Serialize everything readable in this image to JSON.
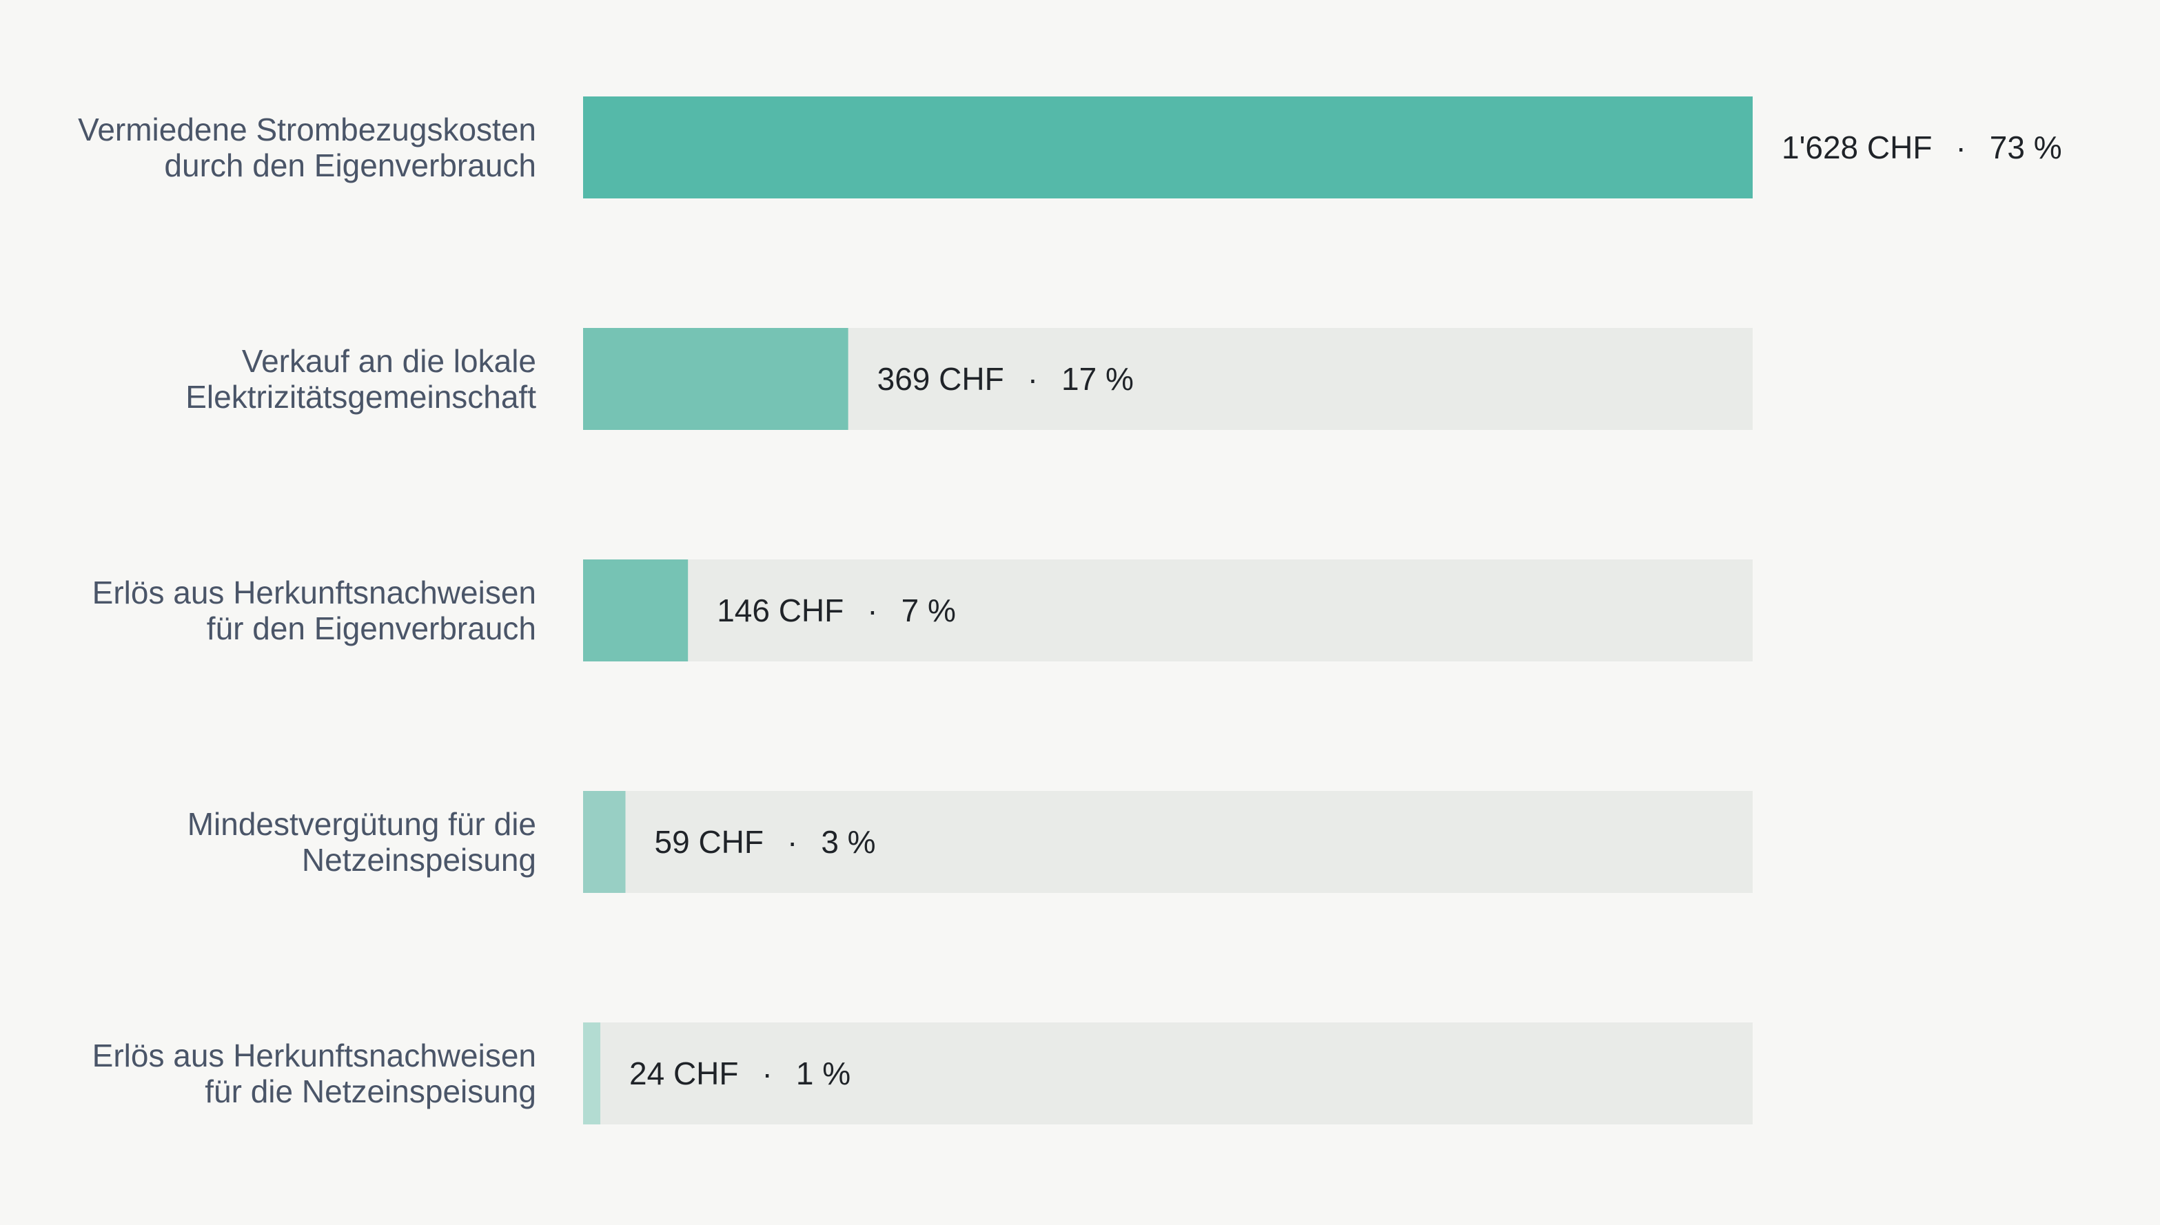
{
  "chart_data": {
    "type": "bar",
    "orientation": "horizontal",
    "unit": "CHF",
    "categories": [
      [
        "Vermiedene Strombezugskosten",
        "durch den Eigenverbrauch"
      ],
      [
        "Verkauf an die lokale",
        "Elektrizitätsgemeinschaft"
      ],
      [
        "Erlös aus Herkunftsnachweisen",
        "für den Eigenverbrauch"
      ],
      [
        "Mindestvergütung für die",
        "Netzeinspeisung"
      ],
      [
        "Erlös aus Herkunftsnachweisen",
        "für die Netzeinspeisung"
      ]
    ],
    "values": [
      1628,
      369,
      146,
      59,
      24
    ],
    "percents": [
      73,
      17,
      7,
      3,
      1
    ],
    "value_labels": [
      "1'628 CHF",
      "369 CHF",
      "146 CHF",
      "59 CHF",
      "24 CHF"
    ],
    "percent_labels": [
      "73 %",
      "17 %",
      "7 %",
      "3 %",
      "1 %"
    ],
    "separator": "·",
    "xlim": [
      0,
      1628
    ],
    "grid": false,
    "legend": "none",
    "colors": {
      "background": "#f7f7f5",
      "track": "#e9ebe8",
      "bars": [
        "#55b9a9",
        "#76c3b4",
        "#76c3b4",
        "#98cfc4",
        "#b3dcd2"
      ],
      "category_text": "#4a5568",
      "value_text": "#1f2328"
    }
  }
}
